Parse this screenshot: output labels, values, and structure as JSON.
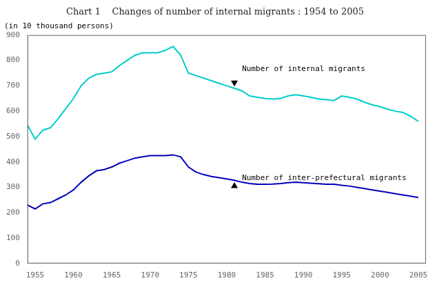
{
  "chart_data": {
    "type": "line",
    "title": "Chart 1    Changes of number of internal migrants : 1954 to 2005",
    "subtitle": "(in 10 thousand persons)",
    "x": [
      1954,
      1955,
      1956,
      1957,
      1958,
      1959,
      1960,
      1961,
      1962,
      1963,
      1964,
      1965,
      1966,
      1967,
      1968,
      1969,
      1970,
      1971,
      1972,
      1973,
      1974,
      1975,
      1976,
      1977,
      1978,
      1979,
      1980,
      1981,
      1982,
      1983,
      1984,
      1985,
      1986,
      1987,
      1988,
      1989,
      1990,
      1991,
      1992,
      1993,
      1994,
      1995,
      1996,
      1997,
      1998,
      1999,
      2000,
      2001,
      2002,
      2003,
      2004,
      2005
    ],
    "series": [
      {
        "color": "#00CCCC",
        "values": [
          545,
          490,
          525,
          535,
          570,
          610,
          650,
          700,
          730,
          745,
          750,
          755,
          780,
          800,
          820,
          830,
          830,
          830,
          840,
          855,
          820,
          750,
          740,
          730,
          720,
          710,
          700,
          690,
          680,
          660,
          655,
          650,
          648,
          650,
          660,
          665,
          660,
          655,
          648,
          645,
          642,
          660,
          655,
          648,
          635,
          625,
          618,
          608,
          600,
          595,
          580,
          560
        ]
      },
      {
        "color": "#0000BB",
        "values": [
          230,
          215,
          235,
          240,
          255,
          270,
          290,
          320,
          345,
          365,
          370,
          380,
          395,
          405,
          415,
          420,
          425,
          425,
          425,
          428,
          420,
          380,
          360,
          350,
          343,
          338,
          333,
          328,
          320,
          315,
          312,
          312,
          313,
          315,
          318,
          320,
          318,
          316,
          314,
          312,
          312,
          308,
          305,
          300,
          295,
          290,
          285,
          280,
          275,
          270,
          265,
          260
        ]
      }
    ],
    "annotations": [
      {
        "text": "Number of internal migrants",
        "x": 1981,
        "y": 710,
        "marker": "triangle-down",
        "text_x": 1982,
        "text_y": 750
      },
      {
        "text": "Number of inter-prefectural migrants",
        "x": 1981,
        "y": 308,
        "marker": "triangle-up",
        "text_x": 1982,
        "text_y": 320
      }
    ],
    "xlim": [
      1954,
      2006
    ],
    "ylim": [
      0,
      900
    ],
    "xticks": [
      1955,
      1960,
      1965,
      1970,
      1975,
      1980,
      1985,
      1990,
      1995,
      2000,
      2005
    ],
    "yticks": [
      0,
      100,
      200,
      300,
      400,
      500,
      600,
      700,
      800,
      900
    ],
    "grid": false
  }
}
